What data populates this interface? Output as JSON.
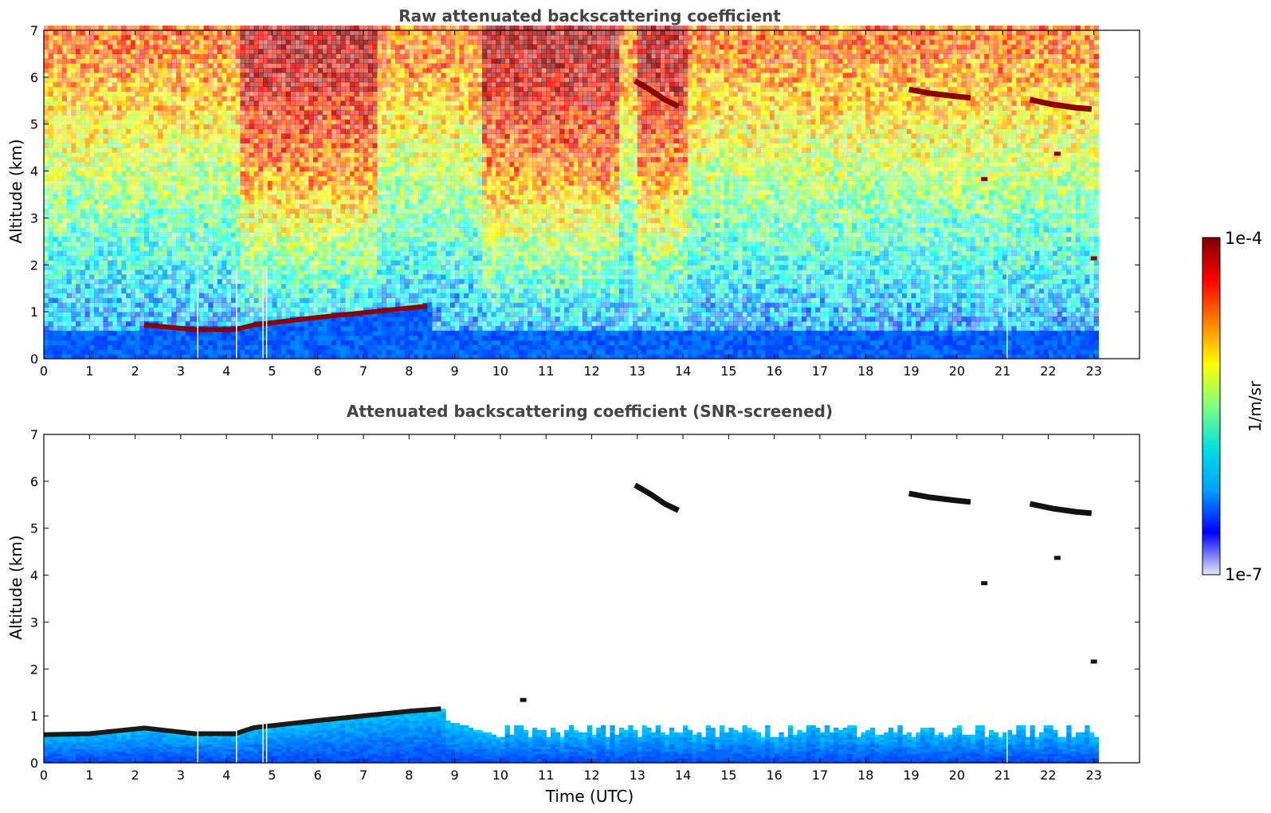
{
  "chart_data": [
    {
      "type": "heatmap",
      "title": "Raw attenuated backscattering coefficient",
      "xlabel": "",
      "ylabel": "Altitude (km)",
      "xlim": [
        0,
        24
      ],
      "ylim": [
        0,
        7
      ],
      "x_ticks": [
        "0",
        "1",
        "2",
        "3",
        "4",
        "5",
        "6",
        "7",
        "8",
        "9",
        "10",
        "11",
        "12",
        "13",
        "14",
        "15",
        "16",
        "17",
        "18",
        "19",
        "20",
        "21",
        "22",
        "23"
      ],
      "y_ticks": [
        "0",
        "1",
        "2",
        "3",
        "4",
        "5",
        "6",
        "7"
      ],
      "data_end_time": 23.1,
      "grid": false,
      "features": [
        {
          "kind": "boundary_layer_top",
          "points": [
            [
              2.2,
              0.72
            ],
            [
              3.3,
              0.62
            ],
            [
              4.2,
              0.62
            ],
            [
              4.6,
              0.72
            ],
            [
              6.0,
              0.88
            ],
            [
              7.0,
              0.98
            ],
            [
              8.0,
              1.08
            ],
            [
              8.4,
              1.12
            ]
          ]
        },
        {
          "kind": "cloud",
          "points": [
            [
              12.95,
              5.92
            ],
            [
              13.3,
              5.72
            ],
            [
              13.6,
              5.52
            ],
            [
              13.9,
              5.38
            ]
          ]
        },
        {
          "kind": "cloud",
          "points": [
            [
              18.95,
              5.74
            ],
            [
              19.4,
              5.66
            ],
            [
              19.9,
              5.6
            ],
            [
              20.3,
              5.56
            ]
          ]
        },
        {
          "kind": "cloud",
          "points": [
            [
              21.6,
              5.52
            ],
            [
              22.1,
              5.42
            ],
            [
              22.6,
              5.35
            ],
            [
              22.95,
              5.32
            ]
          ]
        },
        {
          "kind": "cloud",
          "points": [
            [
              22.2,
              4.36
            ]
          ]
        },
        {
          "kind": "cloud",
          "points": [
            [
              20.6,
              3.82
            ]
          ]
        },
        {
          "kind": "cloud",
          "points": [
            [
              23.0,
              2.13
            ]
          ]
        }
      ],
      "gaps": [
        3.37,
        4.22,
        4.8,
        4.88,
        21.1
      ]
    },
    {
      "type": "heatmap",
      "title": "Attenuated backscattering coefficient (SNR-screened)",
      "xlabel": "Time (UTC)",
      "ylabel": "Altitude (km)",
      "xlim": [
        0,
        24
      ],
      "ylim": [
        0,
        7
      ],
      "x_ticks": [
        "0",
        "1",
        "2",
        "3",
        "4",
        "5",
        "6",
        "7",
        "8",
        "9",
        "10",
        "11",
        "12",
        "13",
        "14",
        "15",
        "16",
        "17",
        "18",
        "19",
        "20",
        "21",
        "22",
        "23"
      ],
      "y_ticks": [
        "0",
        "1",
        "2",
        "3",
        "4",
        "5",
        "6",
        "7"
      ],
      "data_end_time": 23.1,
      "grid": false,
      "features": [
        {
          "kind": "boundary_layer_top",
          "points": [
            [
              0.0,
              0.6
            ],
            [
              1.0,
              0.62
            ],
            [
              2.2,
              0.74
            ],
            [
              3.3,
              0.62
            ],
            [
              4.2,
              0.62
            ],
            [
              4.6,
              0.75
            ],
            [
              6.0,
              0.9
            ],
            [
              7.0,
              1.0
            ],
            [
              8.0,
              1.1
            ],
            [
              8.7,
              1.15
            ]
          ]
        },
        {
          "kind": "cloud",
          "points": [
            [
              12.95,
              5.92
            ],
            [
              13.3,
              5.72
            ],
            [
              13.6,
              5.52
            ],
            [
              13.9,
              5.38
            ]
          ]
        },
        {
          "kind": "cloud",
          "points": [
            [
              18.95,
              5.74
            ],
            [
              19.4,
              5.66
            ],
            [
              19.9,
              5.6
            ],
            [
              20.3,
              5.56
            ]
          ]
        },
        {
          "kind": "cloud",
          "points": [
            [
              21.6,
              5.52
            ],
            [
              22.1,
              5.42
            ],
            [
              22.6,
              5.35
            ],
            [
              22.95,
              5.32
            ]
          ]
        },
        {
          "kind": "cloud",
          "points": [
            [
              22.2,
              4.36
            ]
          ]
        },
        {
          "kind": "cloud",
          "points": [
            [
              20.6,
              3.82
            ]
          ]
        },
        {
          "kind": "cloud",
          "points": [
            [
              23.0,
              2.15
            ]
          ]
        },
        {
          "kind": "cloud",
          "points": [
            [
              10.5,
              1.33
            ]
          ]
        }
      ],
      "gaps": [
        3.37,
        4.22,
        4.8,
        4.88,
        21.1
      ]
    }
  ],
  "colorbar": {
    "label": "1/m/sr",
    "max_label": "1e-4",
    "min_label": "1e-7",
    "vmin": 1e-07,
    "vmax": 0.0001,
    "scale": "log",
    "colormap": "jet",
    "colors": [
      "#e6e6fa",
      "#0000ff",
      "#00a0ff",
      "#00e0e0",
      "#7fff7f",
      "#ffff00",
      "#ff8000",
      "#ff0000",
      "#7f0000"
    ]
  }
}
